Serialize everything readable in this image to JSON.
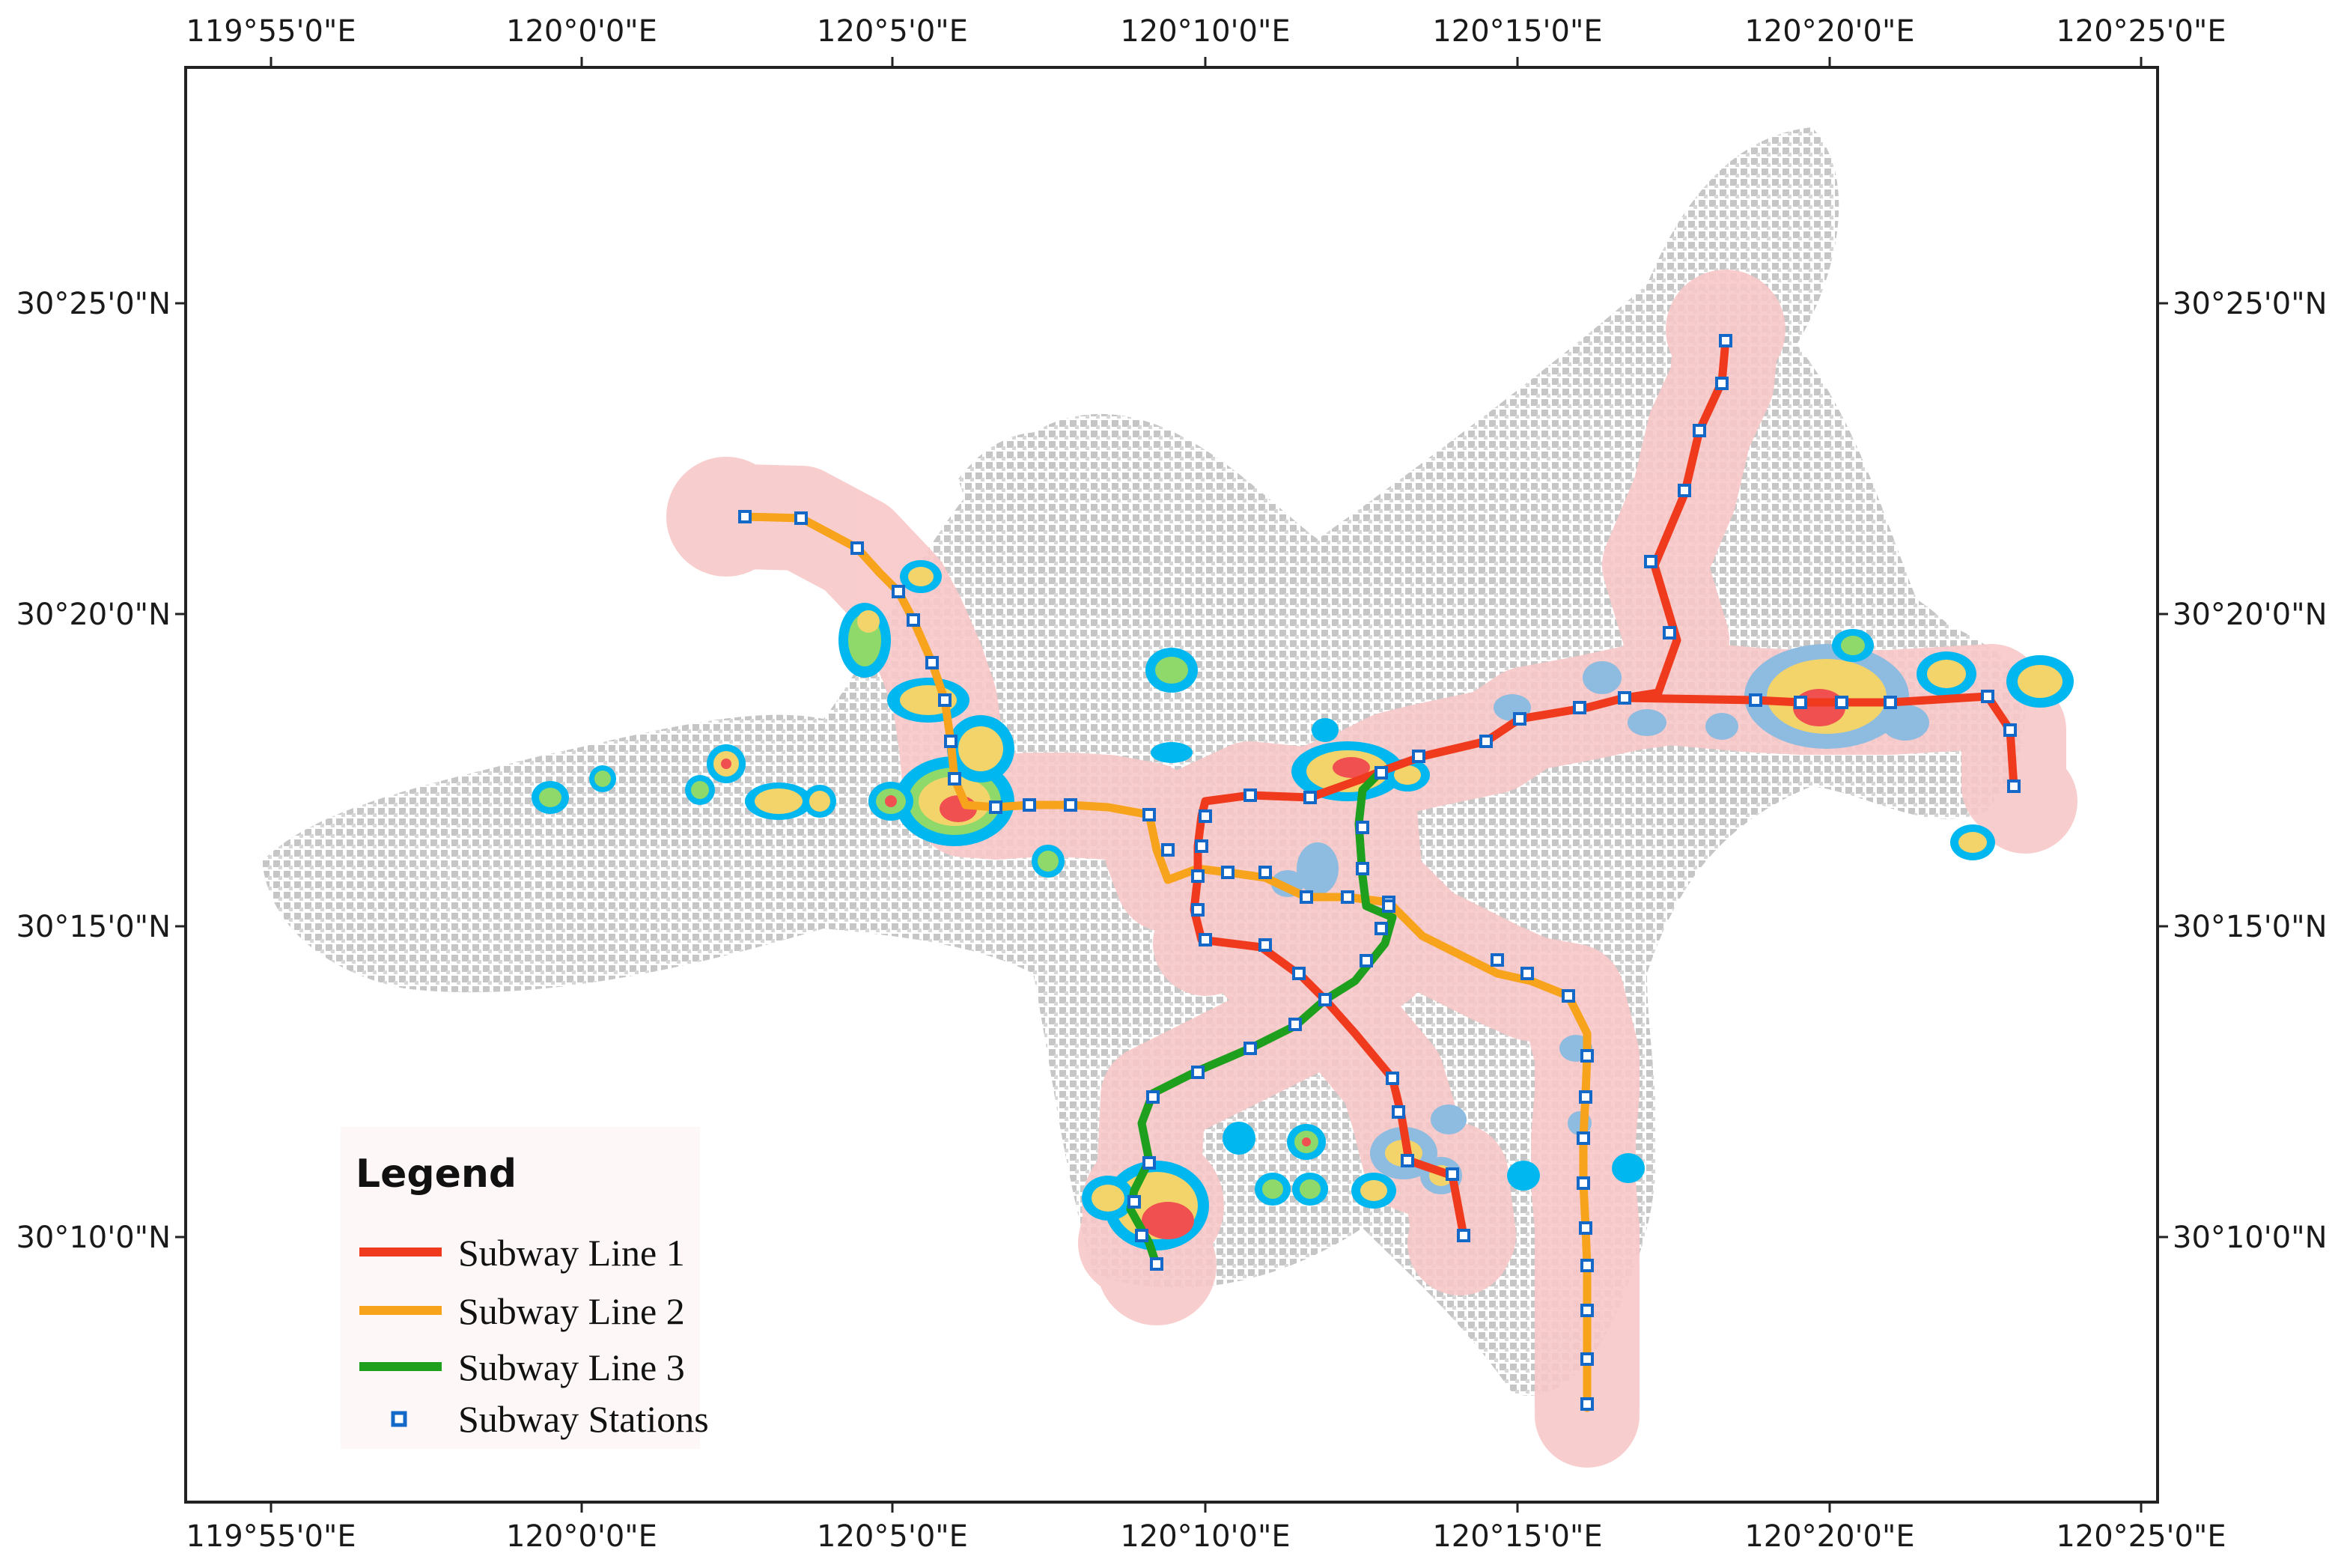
{
  "map": {
    "x_ticks": [
      "119°55'0\"E",
      "120°0'0\"E",
      "120°5'0\"E",
      "120°10'0\"E",
      "120°15'0\"E",
      "120°20'0\"E",
      "120°25'0\"E"
    ],
    "y_ticks": [
      "30°25'0\"N",
      "30°20'0\"N",
      "30°15'0\"N",
      "30°10'0\"N"
    ]
  },
  "legend": {
    "title": "Legend",
    "items": [
      {
        "label": "Subway Line 1",
        "color": "#f03a1e",
        "kind": "line"
      },
      {
        "label": "Subway Line 2",
        "color": "#f7a31c",
        "kind": "line"
      },
      {
        "label": "Subway Line 3",
        "color": "#1ea01e",
        "kind": "line"
      },
      {
        "label": "Subway Stations",
        "color": "#1468c8",
        "kind": "station"
      }
    ]
  },
  "colors": {
    "buffer": "#f8c8c8",
    "urban": "#bdbdbd",
    "hot_low": "#00b7f0",
    "hot_mid": "#8ed96a",
    "hot_high": "#f3d46a",
    "hot_peak": "#f05050"
  }
}
